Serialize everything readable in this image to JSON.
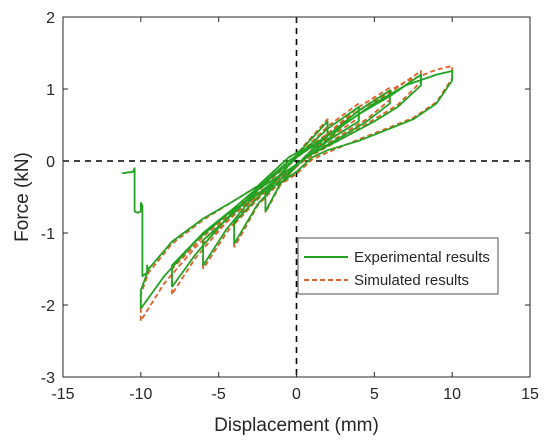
{
  "chart_data": {
    "type": "line",
    "title": "",
    "xlabel": "Displacement (mm)",
    "ylabel": "Force (kN)",
    "xlim": [
      -15,
      15
    ],
    "ylim": [
      -3,
      2
    ],
    "xticks": [
      -15,
      -10,
      -5,
      0,
      5,
      10,
      15
    ],
    "yticks": [
      -3,
      -2,
      -1,
      0,
      1,
      2
    ],
    "xtick_labels": [
      "-15",
      "-10",
      "-5",
      "0",
      "5",
      "10",
      "15"
    ],
    "ytick_labels": [
      "-3",
      "-2",
      "-1",
      "0",
      "1",
      "2"
    ],
    "grid": false,
    "reference_lines": [
      {
        "orientation": "horizontal",
        "value": 0,
        "style": "dashed",
        "color": "#000000"
      },
      {
        "orientation": "vertical",
        "value": 0,
        "style": "dashed",
        "color": "#000000"
      }
    ],
    "legend": {
      "position": "center-right"
    },
    "series": [
      {
        "name": "Experimental results",
        "style": "solid",
        "color": "#22a322",
        "segments": [
          [
            [
              -11.2,
              -0.17
            ],
            [
              -10.5,
              -0.15
            ],
            [
              -10.4,
              -0.1
            ],
            [
              -10.4,
              -0.7
            ],
            [
              -10.2,
              -0.72
            ],
            [
              -10.0,
              -0.7
            ],
            [
              -10.0,
              -0.58
            ],
            [
              -9.9,
              -0.62
            ],
            [
              -9.9,
              -1.6
            ],
            [
              -9.6,
              -1.55
            ],
            [
              -9.6,
              -1.45
            ],
            [
              -9.5,
              -1.52
            ]
          ],
          [
            [
              -10.0,
              -2.05
            ],
            [
              -10.0,
              -1.8
            ],
            [
              -9.5,
              -1.5
            ],
            [
              -8.0,
              -1.12
            ],
            [
              -6.0,
              -0.8
            ],
            [
              -4.0,
              -0.55
            ],
            [
              -2.5,
              -0.35
            ],
            [
              -1.5,
              -0.15
            ],
            [
              -0.5,
              0.05
            ],
            [
              0.3,
              0.15
            ],
            [
              0.8,
              0.18
            ],
            [
              1.5,
              0.2
            ],
            [
              3.0,
              0.5
            ],
            [
              5.0,
              0.8
            ],
            [
              7.0,
              1.05
            ],
            [
              9.0,
              1.2
            ],
            [
              10.0,
              1.25
            ],
            [
              10.0,
              1.12
            ],
            [
              9.0,
              0.8
            ],
            [
              7.5,
              0.58
            ],
            [
              6.0,
              0.45
            ],
            [
              4.0,
              0.28
            ],
            [
              2.0,
              0.15
            ],
            [
              1.0,
              0.05
            ],
            [
              0.0,
              -0.15
            ],
            [
              -1.0,
              -0.3
            ],
            [
              -2.5,
              -0.45
            ],
            [
              -4.5,
              -0.75
            ],
            [
              -6.5,
              -1.12
            ],
            [
              -8.5,
              -1.6
            ],
            [
              -10.0,
              -2.05
            ]
          ],
          [
            [
              -8.0,
              -1.75
            ],
            [
              -8.0,
              -1.45
            ],
            [
              -6.0,
              -1.0
            ],
            [
              -4.0,
              -0.65
            ],
            [
              -2.0,
              -0.28
            ],
            [
              -0.5,
              0.0
            ],
            [
              0.5,
              0.15
            ],
            [
              2.0,
              0.35
            ],
            [
              4.0,
              0.65
            ],
            [
              6.0,
              0.9
            ],
            [
              8.0,
              1.2
            ],
            [
              8.0,
              1.05
            ],
            [
              6.5,
              0.75
            ],
            [
              5.0,
              0.55
            ],
            [
              3.0,
              0.32
            ],
            [
              1.0,
              0.1
            ],
            [
              -0.5,
              -0.12
            ],
            [
              -2.5,
              -0.4
            ],
            [
              -4.5,
              -0.8
            ],
            [
              -6.5,
              -1.3
            ],
            [
              -8.0,
              -1.75
            ]
          ],
          [
            [
              -6.0,
              -1.45
            ],
            [
              -6.0,
              -1.1
            ],
            [
              -4.0,
              -0.72
            ],
            [
              -2.0,
              -0.3
            ],
            [
              0.0,
              0.05
            ],
            [
              2.0,
              0.35
            ],
            [
              4.0,
              0.7
            ],
            [
              6.0,
              0.98
            ],
            [
              6.0,
              0.8
            ],
            [
              4.5,
              0.55
            ],
            [
              3.0,
              0.35
            ],
            [
              1.0,
              0.1
            ],
            [
              -1.0,
              -0.2
            ],
            [
              -3.0,
              -0.55
            ],
            [
              -4.5,
              -0.95
            ],
            [
              -6.0,
              -1.45
            ]
          ],
          [
            [
              -4.0,
              -1.15
            ],
            [
              -4.0,
              -0.85
            ],
            [
              -2.0,
              -0.4
            ],
            [
              0.0,
              0.05
            ],
            [
              2.0,
              0.45
            ],
            [
              4.0,
              0.75
            ],
            [
              4.0,
              0.55
            ],
            [
              2.5,
              0.35
            ],
            [
              1.0,
              0.12
            ],
            [
              -1.0,
              -0.25
            ],
            [
              -2.5,
              -0.6
            ],
            [
              -4.0,
              -1.15
            ]
          ],
          [
            [
              -2.0,
              -0.7
            ],
            [
              -2.0,
              -0.45
            ],
            [
              -0.5,
              -0.05
            ],
            [
              0.5,
              0.2
            ],
            [
              2.0,
              0.55
            ],
            [
              2.0,
              0.35
            ],
            [
              0.5,
              0.05
            ],
            [
              -1.0,
              -0.3
            ],
            [
              -2.0,
              -0.7
            ]
          ]
        ]
      },
      {
        "name": "Simulated results",
        "style": "dashed",
        "color": "#d9622b",
        "segments": [
          [
            [
              -10.0,
              -2.22
            ],
            [
              -10.0,
              -1.85
            ],
            [
              -9.5,
              -1.55
            ],
            [
              -8.0,
              -1.15
            ],
            [
              -6.0,
              -0.82
            ],
            [
              -4.0,
              -0.55
            ],
            [
              -2.5,
              -0.35
            ],
            [
              -1.5,
              -0.15
            ],
            [
              -0.5,
              0.05
            ],
            [
              0.3,
              0.15
            ],
            [
              0.8,
              0.18
            ],
            [
              1.5,
              0.22
            ],
            [
              3.0,
              0.55
            ],
            [
              5.0,
              0.85
            ],
            [
              7.0,
              1.1
            ],
            [
              9.0,
              1.27
            ],
            [
              10.0,
              1.32
            ],
            [
              10.0,
              1.15
            ],
            [
              9.0,
              0.82
            ],
            [
              7.5,
              0.6
            ],
            [
              6.0,
              0.47
            ],
            [
              4.0,
              0.3
            ],
            [
              2.0,
              0.12
            ],
            [
              1.0,
              0.02
            ],
            [
              0.0,
              -0.18
            ],
            [
              -1.0,
              -0.32
            ],
            [
              -2.5,
              -0.5
            ],
            [
              -4.5,
              -0.8
            ],
            [
              -6.5,
              -1.2
            ],
            [
              -8.5,
              -1.7
            ],
            [
              -10.0,
              -2.22
            ]
          ],
          [
            [
              -8.0,
              -1.85
            ],
            [
              -8.0,
              -1.5
            ],
            [
              -6.0,
              -1.05
            ],
            [
              -4.0,
              -0.68
            ],
            [
              -2.0,
              -0.3
            ],
            [
              -0.5,
              0.0
            ],
            [
              0.5,
              0.15
            ],
            [
              2.0,
              0.38
            ],
            [
              4.0,
              0.7
            ],
            [
              6.0,
              0.95
            ],
            [
              8.0,
              1.25
            ],
            [
              8.0,
              1.1
            ],
            [
              6.5,
              0.78
            ],
            [
              5.0,
              0.58
            ],
            [
              3.0,
              0.32
            ],
            [
              1.0,
              0.08
            ],
            [
              -0.5,
              -0.15
            ],
            [
              -2.5,
              -0.45
            ],
            [
              -4.5,
              -0.85
            ],
            [
              -6.5,
              -1.35
            ],
            [
              -8.0,
              -1.85
            ]
          ],
          [
            [
              -6.0,
              -1.5
            ],
            [
              -6.0,
              -1.15
            ],
            [
              -4.0,
              -0.75
            ],
            [
              -2.0,
              -0.32
            ],
            [
              0.0,
              0.05
            ],
            [
              2.0,
              0.38
            ],
            [
              4.0,
              0.75
            ],
            [
              6.0,
              1.02
            ],
            [
              6.0,
              0.85
            ],
            [
              4.5,
              0.58
            ],
            [
              3.0,
              0.38
            ],
            [
              1.0,
              0.1
            ],
            [
              -1.0,
              -0.22
            ],
            [
              -3.0,
              -0.58
            ],
            [
              -4.5,
              -1.0
            ],
            [
              -6.0,
              -1.5
            ]
          ],
          [
            [
              -4.0,
              -1.2
            ],
            [
              -4.0,
              -0.88
            ],
            [
              -2.0,
              -0.42
            ],
            [
              0.0,
              0.05
            ],
            [
              2.0,
              0.48
            ],
            [
              4.0,
              0.8
            ],
            [
              4.0,
              0.6
            ],
            [
              2.5,
              0.38
            ],
            [
              1.0,
              0.12
            ],
            [
              -1.0,
              -0.28
            ],
            [
              -2.5,
              -0.62
            ],
            [
              -4.0,
              -1.2
            ]
          ],
          [
            [
              -2.0,
              -0.72
            ],
            [
              -2.0,
              -0.48
            ],
            [
              -0.5,
              -0.05
            ],
            [
              0.5,
              0.22
            ],
            [
              2.0,
              0.58
            ],
            [
              2.0,
              0.38
            ],
            [
              0.5,
              0.05
            ],
            [
              -1.0,
              -0.32
            ],
            [
              -2.0,
              -0.72
            ]
          ]
        ]
      }
    ]
  }
}
